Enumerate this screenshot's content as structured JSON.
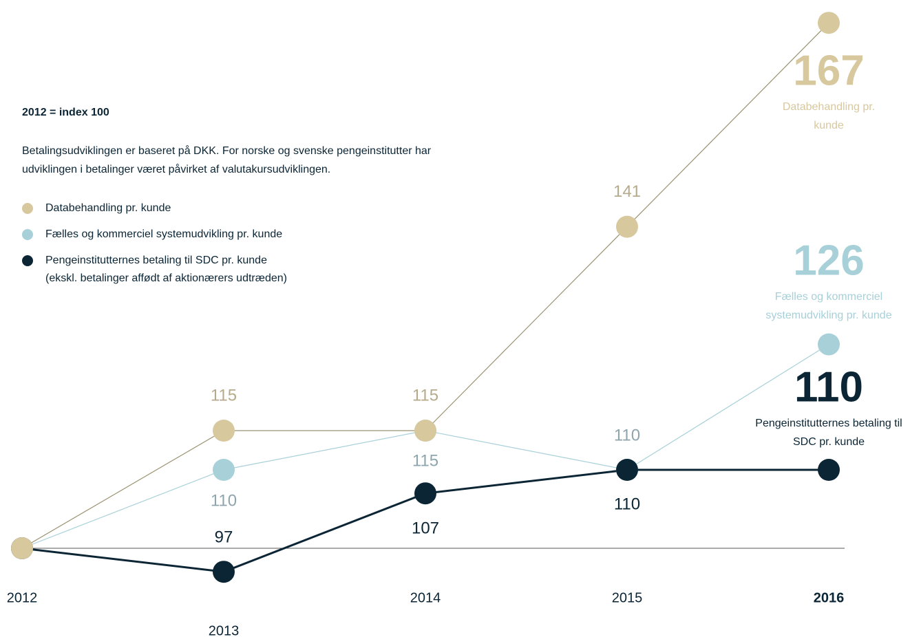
{
  "chart_data": {
    "type": "line",
    "subtitle": "2012 = index 100",
    "note": "Betalingsudviklingen er baseret på DKK. For norske og svenske pengeinstitutter har udviklingen i betalinger været påvirket af valutakursudviklingen.",
    "categories": [
      "2012",
      "2013",
      "2014",
      "2015",
      "2016"
    ],
    "baseline": 100,
    "ylim": [
      92,
      169
    ],
    "series": [
      {
        "name": "Databehandling pr. kunde",
        "color": "#d8c89e",
        "values": [
          100,
          115,
          115,
          141,
          167
        ]
      },
      {
        "name": "Fælles og kommerciel systemudvikling pr. kunde",
        "color": "#a7d0d8",
        "values": [
          100,
          110,
          115,
          110,
          126
        ]
      },
      {
        "name": "Pengeinstitutternes betaling til SDC pr. kunde",
        "legend_note": "(ekskl. betalinger affødt af aktionærers udtræden)",
        "color": "#0b2535",
        "values": [
          100,
          97,
          107,
          110,
          110
        ]
      }
    ]
  }
}
